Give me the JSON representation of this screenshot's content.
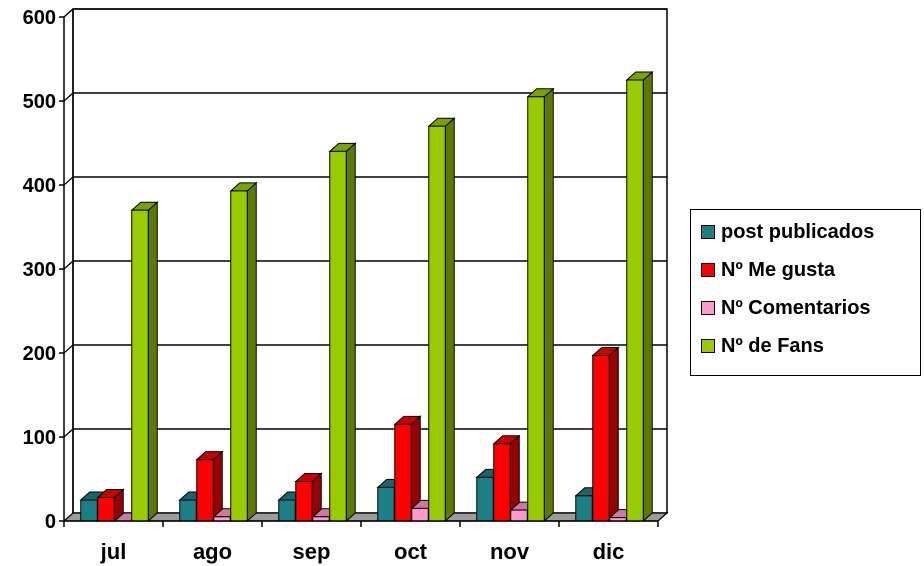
{
  "chart_data": {
    "type": "bar",
    "categories": [
      "jul",
      "ago",
      "sep",
      "oct",
      "nov",
      "dic"
    ],
    "series": [
      {
        "name": "post publicados",
        "color": "#1b7f86",
        "values": [
          25,
          25,
          25,
          40,
          52,
          30
        ]
      },
      {
        "name": "Nº Me gusta",
        "color": "#ff0000",
        "values": [
          28,
          73,
          47,
          115,
          92,
          197
        ]
      },
      {
        "name": "Nº Comentarios",
        "color": "#ff99cc",
        "values": [
          0,
          5,
          5,
          15,
          13,
          4
        ]
      },
      {
        "name": "Nº de Fans",
        "color": "#99cc00",
        "values": [
          370,
          393,
          440,
          470,
          505,
          525
        ]
      }
    ],
    "y_ticks": [
      "0",
      "100",
      "200",
      "300",
      "400",
      "500",
      "600"
    ],
    "ylim": [
      0,
      600
    ],
    "grid": true,
    "legend_position": "right",
    "title": "",
    "xlabel": "",
    "ylabel": ""
  }
}
